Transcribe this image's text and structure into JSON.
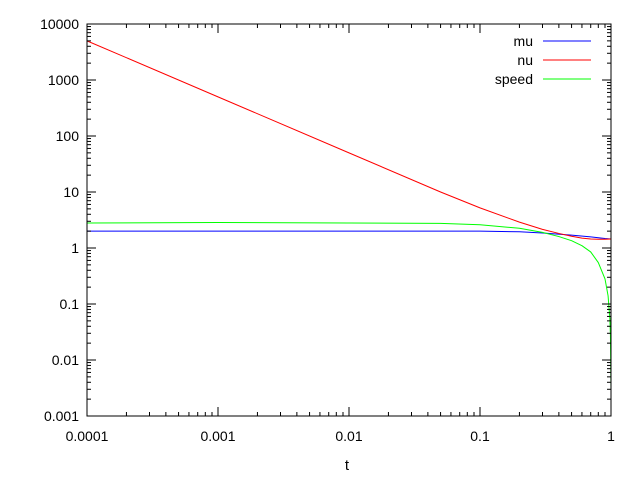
{
  "chart_data": {
    "type": "line",
    "xlabel": "t",
    "ylabel": "",
    "title": "",
    "xscale": "log",
    "yscale": "log",
    "xlim": [
      0.0001,
      1
    ],
    "ylim": [
      0.001,
      10000
    ],
    "grid": false,
    "legend_position": "top-right",
    "x_ticks": [
      {
        "value": 0.0001,
        "label": "0.0001"
      },
      {
        "value": 0.001,
        "label": "0.001"
      },
      {
        "value": 0.01,
        "label": "0.01"
      },
      {
        "value": 0.1,
        "label": "0.1"
      },
      {
        "value": 1,
        "label": "1"
      }
    ],
    "y_ticks": [
      {
        "value": 0.001,
        "label": "0.001"
      },
      {
        "value": 0.01,
        "label": "0.01"
      },
      {
        "value": 0.1,
        "label": "0.1"
      },
      {
        "value": 1,
        "label": "1"
      },
      {
        "value": 10,
        "label": "10"
      },
      {
        "value": 100,
        "label": "100"
      },
      {
        "value": 1000,
        "label": "1000"
      },
      {
        "value": 10000,
        "label": "10000"
      }
    ],
    "series": [
      {
        "name": "mu",
        "color": "#0000ff",
        "x": [
          0.0001,
          0.001,
          0.01,
          0.05,
          0.1,
          0.2,
          0.3,
          0.5,
          0.7,
          0.9,
          1
        ],
        "y": [
          2.0,
          2.0,
          2.0,
          2.0,
          2.0,
          1.95,
          1.85,
          1.7,
          1.58,
          1.48,
          1.45
        ]
      },
      {
        "name": "nu",
        "color": "#ff0000",
        "x": [
          0.0001,
          0.001,
          0.01,
          0.05,
          0.1,
          0.2,
          0.3,
          0.4,
          0.5,
          0.6,
          0.7,
          0.8,
          0.9,
          1
        ],
        "y": [
          5000,
          500,
          50,
          10,
          5.2,
          2.9,
          2.15,
          1.82,
          1.62,
          1.5,
          1.45,
          1.43,
          1.43,
          1.45
        ]
      },
      {
        "name": "speed",
        "color": "#00ff00",
        "x": [
          0.0001,
          0.001,
          0.01,
          0.05,
          0.1,
          0.2,
          0.3,
          0.4,
          0.5,
          0.6,
          0.7,
          0.8,
          0.9,
          0.95,
          0.98,
          0.99,
          1
        ],
        "y": [
          2.8,
          2.85,
          2.8,
          2.75,
          2.6,
          2.25,
          1.9,
          1.6,
          1.35,
          1.1,
          0.85,
          0.55,
          0.28,
          0.14,
          0.055,
          0.028,
          0.003
        ]
      }
    ]
  }
}
